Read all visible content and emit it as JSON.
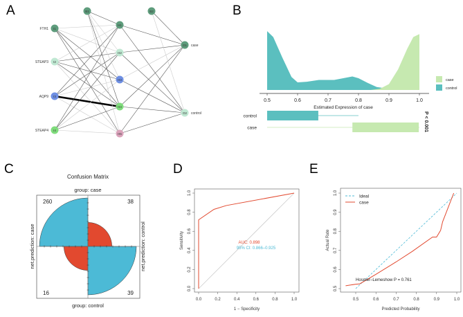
{
  "panel_labels": [
    "A",
    "B",
    "C",
    "D",
    "E"
  ],
  "chart_data": [
    {
      "panel": "A",
      "type": "network",
      "title": "",
      "input_labels": [
        "FTH1",
        "STEAP3",
        "AQP9",
        "STEAP4"
      ],
      "output_labels": [
        "case",
        "control"
      ],
      "nodes": {
        "bias": [
          "B1",
          "B2"
        ],
        "input": [
          "I1",
          "I2",
          "I3",
          "I4"
        ],
        "hidden": [
          "H1",
          "H2",
          "H3",
          "H4",
          "H5"
        ],
        "output": [
          "O1",
          "O2"
        ]
      },
      "node_colors": {
        "I1": "#5e9c7c",
        "I2": "#bfe8d2",
        "I3": "#6e8fe3",
        "I4": "#7fdc7c",
        "H1": "#5e9c7c",
        "H2": "#bfe8d2",
        "H3": "#6e8fe3",
        "H4": "#7fdc7c",
        "H5": "#dba3bb",
        "O1": "#5e9c7c",
        "O2": "#bfe8d2",
        "B1": "#5e9c7c",
        "B2": "#5e9c7c"
      },
      "strongest_edge": [
        "I3",
        "H4"
      ]
    },
    {
      "panel": "B",
      "type": "area",
      "xlabel": "Estimated Expression of case",
      "xticks": [
        0.5,
        0.6,
        0.7,
        0.8,
        0.9,
        1.0
      ],
      "xtick_labels": [
        "0.5",
        "0.6",
        "0.7",
        "0.8",
        "0.9",
        "1.0"
      ],
      "xlim": [
        0.5,
        1.0
      ],
      "legend": {
        "position": "right",
        "entries": [
          "case",
          "control"
        ]
      },
      "series": [
        {
          "name": "control",
          "color": "#5bbfbf",
          "x": [
            0.5,
            0.52,
            0.55,
            0.58,
            0.6,
            0.63,
            0.67,
            0.72,
            0.75,
            0.78,
            0.8,
            0.83,
            0.86,
            0.9,
            0.95,
            1.0
          ],
          "density": [
            1.0,
            0.9,
            0.55,
            0.22,
            0.13,
            0.14,
            0.17,
            0.17,
            0.2,
            0.23,
            0.2,
            0.12,
            0.05,
            0.02,
            0.015,
            0.01
          ]
        },
        {
          "name": "case",
          "color": "#c6e9b0",
          "x": [
            0.84,
            0.87,
            0.9,
            0.93,
            0.96,
            0.98,
            1.0
          ],
          "density": [
            0.0,
            0.02,
            0.1,
            0.35,
            0.7,
            0.9,
            0.95
          ]
        }
      ],
      "boxplots": [
        {
          "name": "control",
          "whisker_low": 0.5,
          "q1": 0.5,
          "q3": 0.668,
          "whisker_high": 0.8,
          "color": "#5bbfbf"
        },
        {
          "name": "case",
          "whisker_low": 0.5,
          "q1": 0.78,
          "q3": 0.998,
          "whisker_high": 1.0,
          "color": "#c6e9b0"
        }
      ],
      "p_label": "P < 0.001"
    },
    {
      "panel": "C",
      "type": "fourfold",
      "title": "Confusion Matrix",
      "top_label": "group: case",
      "bottom_label": "group: control",
      "left_label": "net.prediction: case",
      "right_label": "net.prediction: control",
      "cells": [
        {
          "value": 260,
          "position": "top-left",
          "color": "#4cbad6"
        },
        {
          "value": 38,
          "position": "top-right",
          "color": "#e2492f"
        },
        {
          "value": 16,
          "position": "bottom-left",
          "color": "#e2492f"
        },
        {
          "value": 39,
          "position": "bottom-right",
          "color": "#4cbad6"
        }
      ]
    },
    {
      "panel": "D",
      "type": "line",
      "xlabel": "1 − Specificity",
      "ylabel": "Sensitivity",
      "xlim": [
        0,
        1
      ],
      "ylim": [
        0,
        1
      ],
      "ticks": [
        "0.0",
        "0.2",
        "0.4",
        "0.6",
        "0.8",
        "1.0"
      ],
      "series": [
        {
          "name": "ROC",
          "color": "#e2492f",
          "x": [
            0,
            0,
            0.16,
            0.29,
            1.0
          ],
          "y": [
            0,
            0.72,
            0.83,
            0.87,
            1.0
          ]
        }
      ],
      "auc_label": "AUC: 0.898",
      "ci_label": "95% CI: 0.866–0.925",
      "auc_color": "#e2492f",
      "ci_color": "#4cbad6"
    },
    {
      "panel": "E",
      "type": "line",
      "xlabel": "Predicted Probability",
      "ylabel": "Actual Rate",
      "xlim": [
        0.5,
        1.0
      ],
      "ylim": [
        0.5,
        1.0
      ],
      "ticks": [
        "0.5",
        "0.6",
        "0.7",
        "0.8",
        "0.9",
        "1.0"
      ],
      "legend": {
        "position": "top-left",
        "entries": [
          "Ideal",
          "case"
        ]
      },
      "series": [
        {
          "name": "Ideal",
          "color": "#4cbad6",
          "dashed": true,
          "x": [
            0.5,
            1.0
          ],
          "y": [
            0.5,
            1.0
          ]
        },
        {
          "name": "case",
          "color": "#e2492f",
          "x": [
            0.45,
            0.5,
            0.52,
            0.6,
            0.7,
            0.78,
            0.88,
            0.9,
            0.92,
            0.93,
            0.985
          ],
          "y": [
            0.515,
            0.523,
            0.525,
            0.575,
            0.64,
            0.695,
            0.77,
            0.77,
            0.805,
            0.85,
            1.0
          ]
        }
      ],
      "annotation": "Hosmer–Lemeshow  P  =  0.761"
    }
  ]
}
